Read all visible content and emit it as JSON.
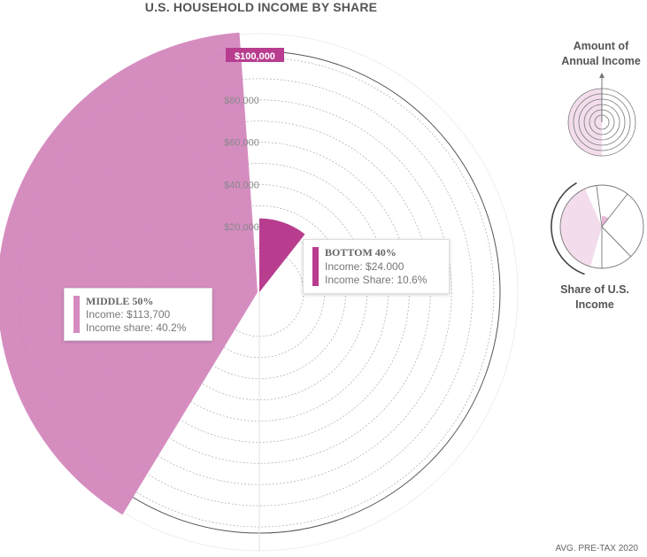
{
  "title": "U.S. HOUSEHOLD INCOME BY SHARE",
  "footnote": "AVG. PRE-TAX 2020",
  "colors": {
    "middle": "#d48bbf",
    "bottom": "#b83d8f",
    "max_label": "#b83d8f",
    "ring": "#aaaaaa"
  },
  "chart_data": {
    "type": "radial-bar",
    "title": "U.S. HOUSEHOLD INCOME BY SHARE",
    "radial_axis": {
      "max": 100000,
      "ticks": [
        20000,
        40000,
        60000,
        80000,
        100000
      ],
      "tick_labels": [
        "$20,000",
        "$40,000",
        "$60,000",
        "$80,000",
        "$100,000"
      ],
      "ring_step": 10000
    },
    "series": [
      {
        "name": "MIDDLE 50%",
        "income": 113700,
        "share": 40.2
      },
      {
        "name": "BOTTOM 40%",
        "income": 24000,
        "share": 10.6
      }
    ]
  },
  "tooltips": {
    "middle": {
      "heading": "MIDDLE 50%",
      "income": "Income: $113,700",
      "share": "Income share: 40.2%"
    },
    "bottom": {
      "heading": "BOTTOM 40%",
      "income": "Income: $24.000",
      "share": "Income Share: 10.6%"
    }
  },
  "legend": {
    "amount_label_line1": "Amount of",
    "amount_label_line2": "Annual Income",
    "share_label_line1": "Share of U.S.",
    "share_label_line2": "Income"
  }
}
